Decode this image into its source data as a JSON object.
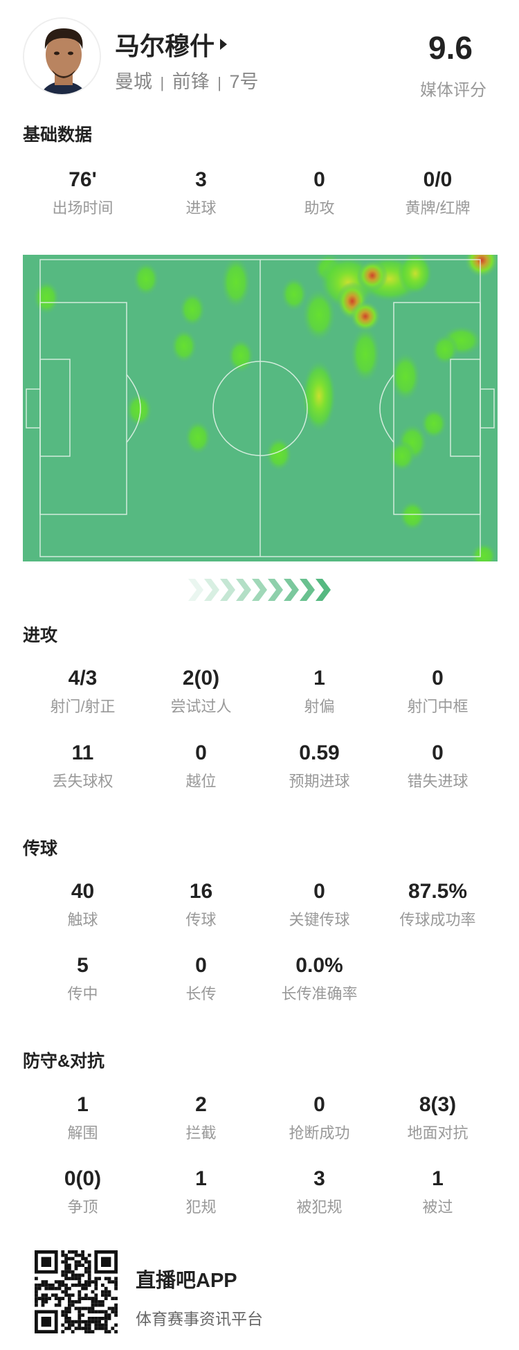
{
  "player": {
    "name": "马尔穆什",
    "team": "曼城",
    "position": "前锋",
    "number": "7号",
    "rating": "9.6",
    "rating_label": "媒体评分",
    "separator": "|"
  },
  "sections": [
    {
      "title": "基础数据",
      "rows": [
        [
          {
            "v": "76'",
            "l": "出场时间"
          },
          {
            "v": "3",
            "l": "进球"
          },
          {
            "v": "0",
            "l": "助攻"
          },
          {
            "v": "0/0",
            "l": "黄牌/红牌"
          }
        ]
      ]
    },
    {
      "title": "进攻",
      "rows": [
        [
          {
            "v": "4/3",
            "l": "射门/射正"
          },
          {
            "v": "2(0)",
            "l": "尝试过人"
          },
          {
            "v": "1",
            "l": "射偏"
          },
          {
            "v": "0",
            "l": "射门中框"
          }
        ],
        [
          {
            "v": "11",
            "l": "丢失球权"
          },
          {
            "v": "0",
            "l": "越位"
          },
          {
            "v": "0.59",
            "l": "预期进球"
          },
          {
            "v": "0",
            "l": "错失进球"
          }
        ]
      ]
    },
    {
      "title": "传球",
      "rows": [
        [
          {
            "v": "40",
            "l": "触球"
          },
          {
            "v": "16",
            "l": "传球"
          },
          {
            "v": "0",
            "l": "关键传球"
          },
          {
            "v": "87.5%",
            "l": "传球成功率"
          }
        ],
        [
          {
            "v": "5",
            "l": "传中"
          },
          {
            "v": "0",
            "l": "长传"
          },
          {
            "v": "0.0%",
            "l": "长传准确率"
          }
        ]
      ]
    },
    {
      "title": "防守&对抗",
      "rows": [
        [
          {
            "v": "1",
            "l": "解围"
          },
          {
            "v": "2",
            "l": "拦截"
          },
          {
            "v": "0",
            "l": "抢断成功"
          },
          {
            "v": "8(3)",
            "l": "地面对抗"
          }
        ],
        [
          {
            "v": "0(0)",
            "l": "争顶"
          },
          {
            "v": "1",
            "l": "犯规"
          },
          {
            "v": "3",
            "l": "被犯规"
          },
          {
            "v": "1",
            "l": "被过"
          }
        ]
      ]
    }
  ],
  "heatmap": {
    "pitch_color": "#56b981",
    "attack_direction": "right"
  },
  "footer": {
    "app_name": "直播吧APP",
    "tagline": "体育赛事资讯平台",
    "qr_icon": "qr-code-icon"
  }
}
